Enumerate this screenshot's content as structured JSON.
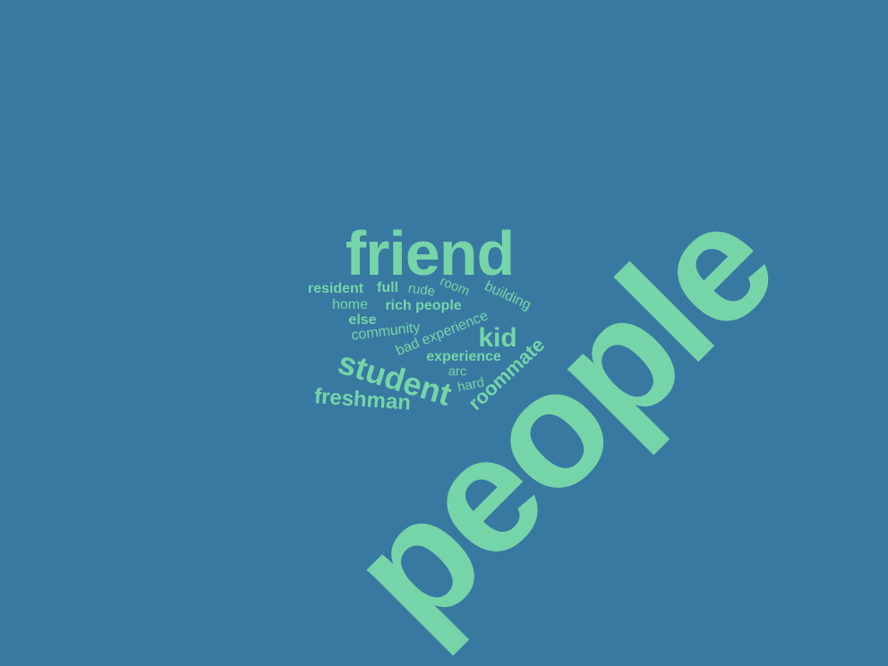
{
  "colors": {
    "background": "#3879a1",
    "word": "#76d4a9"
  },
  "words": [
    {
      "text": "people"
    },
    {
      "text": "friend"
    },
    {
      "text": "student"
    },
    {
      "text": "roommate"
    },
    {
      "text": "freshman"
    },
    {
      "text": "kid"
    },
    {
      "text": "experience"
    },
    {
      "text": "bad experience"
    },
    {
      "text": "community"
    },
    {
      "text": "rich people"
    },
    {
      "text": "building"
    },
    {
      "text": "resident"
    },
    {
      "text": "full"
    },
    {
      "text": "rude"
    },
    {
      "text": "room"
    },
    {
      "text": "home"
    },
    {
      "text": "else"
    },
    {
      "text": "arc"
    },
    {
      "text": "hard"
    }
  ]
}
